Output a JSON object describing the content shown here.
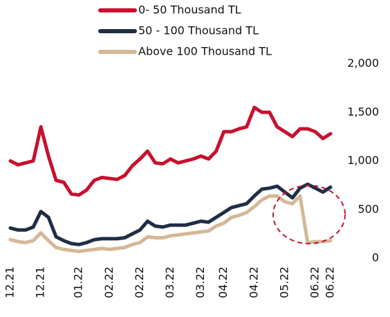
{
  "chart_data": {
    "type": "line",
    "categories": [
      "12.21",
      null,
      null,
      null,
      "12.21",
      null,
      null,
      null,
      null,
      "01.22",
      null,
      null,
      null,
      "02.22",
      null,
      null,
      null,
      "02.22",
      null,
      null,
      null,
      "03.22",
      null,
      null,
      null,
      "03.22",
      null,
      null,
      "04.22",
      null,
      null,
      null,
      "04.22",
      null,
      null,
      null,
      "05.22",
      null,
      null,
      null,
      "06.22",
      null,
      "06.22"
    ],
    "series": [
      {
        "name": "0- 50 Thousand TL",
        "color": "#c8102e",
        "values": [
          1000,
          960,
          980,
          1000,
          1350,
          1050,
          800,
          780,
          660,
          650,
          700,
          800,
          830,
          820,
          810,
          850,
          950,
          1020,
          1100,
          980,
          970,
          1020,
          980,
          1000,
          1020,
          1050,
          1020,
          1100,
          1300,
          1300,
          1330,
          1350,
          1550,
          1500,
          1500,
          1350,
          1300,
          1250,
          1330,
          1330,
          1300,
          1230,
          1280
        ]
      },
      {
        "name": "50 - 100 Thousand TL",
        "color": "#1f2d45",
        "values": [
          310,
          290,
          290,
          320,
          480,
          420,
          220,
          180,
          150,
          140,
          160,
          190,
          200,
          200,
          200,
          210,
          250,
          290,
          380,
          330,
          320,
          340,
          340,
          340,
          360,
          380,
          370,
          420,
          470,
          520,
          540,
          560,
          640,
          710,
          720,
          740,
          680,
          620,
          720,
          760,
          720,
          680,
          730
        ]
      },
      {
        "name": "Above 100 Thousand TL",
        "color": "#d4b896",
        "values": [
          190,
          170,
          160,
          180,
          260,
          180,
          110,
          90,
          80,
          70,
          80,
          90,
          100,
          90,
          100,
          110,
          140,
          160,
          220,
          210,
          210,
          230,
          240,
          250,
          260,
          270,
          280,
          330,
          360,
          420,
          440,
          470,
          530,
          600,
          640,
          640,
          580,
          560,
          640,
          160,
          170,
          170,
          180
        ]
      }
    ],
    "ylim": [
      0,
      2000
    ],
    "yticks": [
      0,
      500,
      {
        "value": 1000,
        "label": "1,000"
      },
      {
        "value": 1500,
        "label": "1,500"
      },
      {
        "value": 2000,
        "label": "2,000"
      }
    ],
    "y_axis_side": "right"
  }
}
